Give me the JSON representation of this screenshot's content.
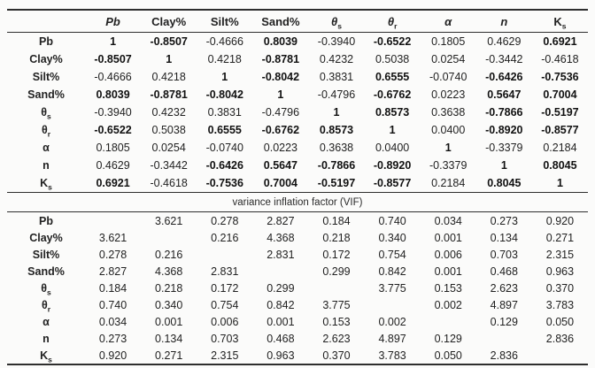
{
  "table": {
    "section_title": "variance inflation factor (VIF)",
    "columns": [
      {
        "base": "Pb",
        "italic": true
      },
      {
        "base": "Clay%"
      },
      {
        "base": "Silt%"
      },
      {
        "base": "Sand%"
      },
      {
        "base": "θ",
        "sub": "s",
        "italic": true
      },
      {
        "base": "θ",
        "sub": "r",
        "italic": true
      },
      {
        "base": "α",
        "italic": true
      },
      {
        "base": "n",
        "italic": true
      },
      {
        "base": "K",
        "sub": "s"
      }
    ],
    "row_labels": [
      {
        "base": "Pb"
      },
      {
        "base": "Clay%"
      },
      {
        "base": "Silt%"
      },
      {
        "base": "Sand%"
      },
      {
        "base": "θ",
        "sub": "s"
      },
      {
        "base": "θ",
        "sub": "r"
      },
      {
        "base": "α"
      },
      {
        "base": "n"
      },
      {
        "base": "K",
        "sub": "s"
      }
    ],
    "correlation_rows": [
      [
        {
          "v": "1",
          "b": true
        },
        {
          "v": "-0.8507",
          "b": true
        },
        {
          "v": "-0.4666"
        },
        {
          "v": "0.8039",
          "b": true
        },
        {
          "v": "-0.3940"
        },
        {
          "v": "-0.6522",
          "b": true
        },
        {
          "v": "0.1805"
        },
        {
          "v": "0.4629"
        },
        {
          "v": "0.6921",
          "b": true
        }
      ],
      [
        {
          "v": "-0.8507",
          "b": true
        },
        {
          "v": "1",
          "b": true
        },
        {
          "v": "0.4218"
        },
        {
          "v": "-0.8781",
          "b": true
        },
        {
          "v": "0.4232"
        },
        {
          "v": "0.5038"
        },
        {
          "v": "0.0254"
        },
        {
          "v": "-0.3442"
        },
        {
          "v": "-0.4618"
        }
      ],
      [
        {
          "v": "-0.4666"
        },
        {
          "v": "0.4218"
        },
        {
          "v": "1",
          "b": true
        },
        {
          "v": "-0.8042",
          "b": true
        },
        {
          "v": "0.3831"
        },
        {
          "v": "0.6555",
          "b": true
        },
        {
          "v": "-0.0740"
        },
        {
          "v": "-0.6426",
          "b": true
        },
        {
          "v": "-0.7536",
          "b": true
        }
      ],
      [
        {
          "v": "0.8039",
          "b": true
        },
        {
          "v": "-0.8781",
          "b": true
        },
        {
          "v": "-0.8042",
          "b": true
        },
        {
          "v": "1",
          "b": true
        },
        {
          "v": "-0.4796"
        },
        {
          "v": "-0.6762",
          "b": true
        },
        {
          "v": "0.0223"
        },
        {
          "v": "0.5647",
          "b": true
        },
        {
          "v": "0.7004",
          "b": true
        }
      ],
      [
        {
          "v": "-0.3940"
        },
        {
          "v": "0.4232"
        },
        {
          "v": "0.3831"
        },
        {
          "v": "-0.4796"
        },
        {
          "v": "1",
          "b": true
        },
        {
          "v": "0.8573",
          "b": true
        },
        {
          "v": "0.3638"
        },
        {
          "v": "-0.7866",
          "b": true
        },
        {
          "v": "-0.5197",
          "b": true
        }
      ],
      [
        {
          "v": "-0.6522",
          "b": true
        },
        {
          "v": "0.5038"
        },
        {
          "v": "0.6555",
          "b": true
        },
        {
          "v": "-0.6762",
          "b": true
        },
        {
          "v": "0.8573",
          "b": true
        },
        {
          "v": "1",
          "b": true
        },
        {
          "v": "0.0400"
        },
        {
          "v": "-0.8920",
          "b": true
        },
        {
          "v": "-0.8577",
          "b": true
        }
      ],
      [
        {
          "v": "0.1805"
        },
        {
          "v": "0.0254"
        },
        {
          "v": "-0.0740"
        },
        {
          "v": "0.0223"
        },
        {
          "v": "0.3638"
        },
        {
          "v": "0.0400"
        },
        {
          "v": "1",
          "b": true
        },
        {
          "v": "-0.3379"
        },
        {
          "v": "0.2184"
        }
      ],
      [
        {
          "v": "0.4629"
        },
        {
          "v": "-0.3442"
        },
        {
          "v": "-0.6426",
          "b": true
        },
        {
          "v": "0.5647",
          "b": true
        },
        {
          "v": "-0.7866",
          "b": true
        },
        {
          "v": "-0.8920",
          "b": true
        },
        {
          "v": "-0.3379"
        },
        {
          "v": "1",
          "b": true
        },
        {
          "v": "0.8045",
          "b": true
        }
      ],
      [
        {
          "v": "0.6921",
          "b": true
        },
        {
          "v": "-0.4618"
        },
        {
          "v": "-0.7536",
          "b": true
        },
        {
          "v": "0.7004",
          "b": true
        },
        {
          "v": "-0.5197",
          "b": true
        },
        {
          "v": "-0.8577",
          "b": true
        },
        {
          "v": "0.2184"
        },
        {
          "v": "0.8045",
          "b": true
        },
        {
          "v": "1",
          "b": true
        }
      ]
    ],
    "vif_rows": [
      [
        "",
        "3.621",
        "0.278",
        "2.827",
        "0.184",
        "0.740",
        "0.034",
        "0.273",
        "0.920"
      ],
      [
        "3.621",
        "",
        "0.216",
        "4.368",
        "0.218",
        "0.340",
        "0.001",
        "0.134",
        "0.271"
      ],
      [
        "0.278",
        "0.216",
        "",
        "2.831",
        "0.172",
        "0.754",
        "0.006",
        "0.703",
        "2.315"
      ],
      [
        "2.827",
        "4.368",
        "2.831",
        "",
        "0.299",
        "0.842",
        "0.001",
        "0.468",
        "0.963"
      ],
      [
        "0.184",
        "0.218",
        "0.172",
        "0.299",
        "",
        "3.775",
        "0.153",
        "2.623",
        "0.370"
      ],
      [
        "0.740",
        "0.340",
        "0.754",
        "0.842",
        "3.775",
        "",
        "0.002",
        "4.897",
        "3.783"
      ],
      [
        "0.034",
        "0.001",
        "0.006",
        "0.001",
        "0.153",
        "0.002",
        "",
        "0.129",
        "0.050"
      ],
      [
        "0.273",
        "0.134",
        "0.703",
        "0.468",
        "2.623",
        "4.897",
        "0.129",
        "",
        "2.836"
      ],
      [
        "0.920",
        "0.271",
        "2.315",
        "0.963",
        "0.370",
        "3.783",
        "0.050",
        "2.836",
        ""
      ]
    ]
  }
}
